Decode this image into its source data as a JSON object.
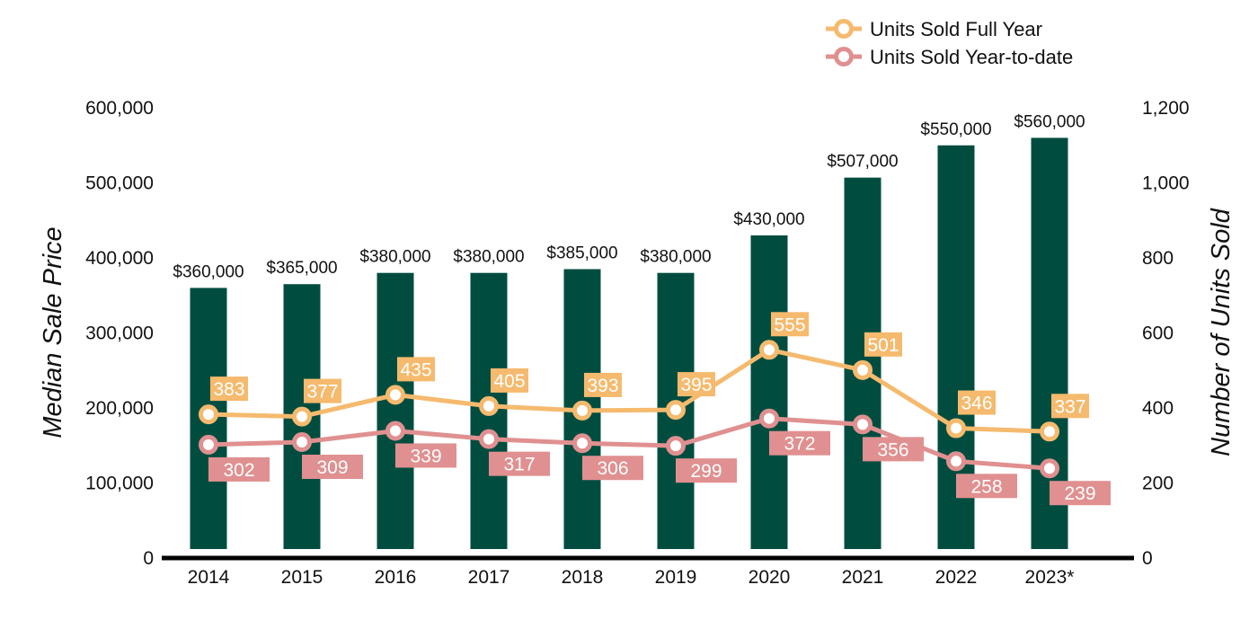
{
  "chart_data": {
    "type": "bar",
    "categories": [
      "2014",
      "2015",
      "2016",
      "2017",
      "2018",
      "2019",
      "2020",
      "2021",
      "2022",
      "2023*"
    ],
    "ylabel": "Median Sale Price",
    "y2label": "Number of Units Sold",
    "ylim": [
      0,
      600000
    ],
    "y2lim": [
      0,
      1200
    ],
    "y_ticks": [
      "0",
      "100,000",
      "200,000",
      "300,000",
      "400,000",
      "500,000",
      "600,000"
    ],
    "y2_ticks": [
      "0",
      "200",
      "400",
      "600",
      "800",
      "1,000",
      "1,200"
    ],
    "grid": false,
    "legend_position": "top-right",
    "series": [
      {
        "kind": "bar",
        "axis": "left",
        "values": [
          360000,
          365000,
          380000,
          380000,
          385000,
          380000,
          430000,
          507000,
          550000,
          560000
        ],
        "labels": [
          "$360,000",
          "$365,000",
          "$380,000",
          "$380,000",
          "$385,000",
          "$380,000",
          "$430,000",
          "$507,000",
          "$550,000",
          "$560,000"
        ],
        "color": "#004D40"
      },
      {
        "kind": "line",
        "axis": "right",
        "name": "Units Sold Full Year",
        "values": [
          383,
          377,
          435,
          405,
          393,
          395,
          555,
          501,
          346,
          337
        ],
        "labels": [
          "383",
          "377",
          "435",
          "405",
          "393",
          "395",
          "555",
          "501",
          "346",
          "337"
        ],
        "color": "#F5BA6E"
      },
      {
        "kind": "line",
        "axis": "right",
        "name": "Units Sold Year-to-date",
        "values": [
          302,
          309,
          339,
          317,
          306,
          299,
          372,
          356,
          258,
          239
        ],
        "labels": [
          "302",
          "309",
          "339",
          "317",
          "306",
          "299",
          "372",
          "356",
          "258",
          "239"
        ],
        "color": "#E09090"
      }
    ]
  }
}
